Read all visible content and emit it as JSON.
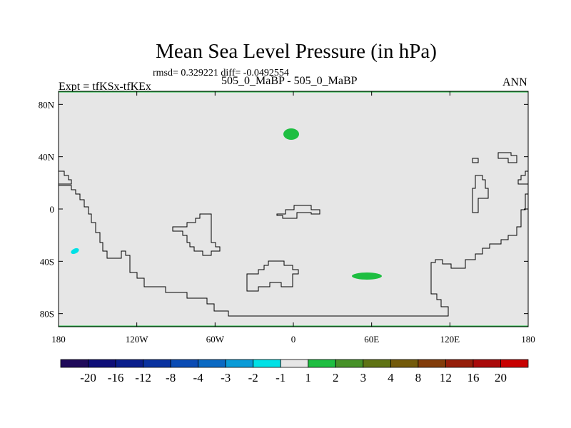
{
  "chart_data": {
    "type": "heatmap",
    "title": "Mean Sea Level Pressure (in hPa)",
    "stats": "rmsd= 0.329221 diff= -0.0492554",
    "left_label": "Expt = tfKSx-tfKEx",
    "center_label": "505_0_MaBP - 505_0_MaBP",
    "right_label": "ANN",
    "x_ticks": [
      "180",
      "120W",
      "60W",
      "0",
      "60E",
      "120E",
      "180"
    ],
    "y_ticks": [
      "80N",
      "40N",
      "0",
      "40S",
      "80S"
    ],
    "xlim": [
      -180,
      180
    ],
    "ylim": [
      -90,
      90
    ],
    "background_value_range": [
      -1,
      1
    ],
    "colorbar": {
      "labels": [
        "-20",
        "-16",
        "-12",
        "-8",
        "-4",
        "-3",
        "-2",
        "-1",
        "1",
        "2",
        "3",
        "4",
        "8",
        "12",
        "16",
        "20"
      ],
      "colors": [
        "#1f0a5a",
        "#0e0e78",
        "#0a1e8c",
        "#0a32a0",
        "#0a4bb4",
        "#0a69c3",
        "#0a9bd7",
        "#00e1e6",
        "#e6e6e6",
        "#1ebe41",
        "#469128",
        "#5f7314",
        "#735a0a",
        "#823c0a",
        "#961e0a",
        "#aa0a0a",
        "#c80000"
      ]
    },
    "anomaly_regions": [
      {
        "name": "positive-region-1",
        "lon": -2,
        "lat": 59,
        "value_range": "1 to 2"
      },
      {
        "name": "positive-region-2",
        "lon": 57,
        "lat": -50,
        "value_range": "1 to 2"
      },
      {
        "name": "negative-region-1",
        "lon": -171,
        "lat": -31,
        "value_range": "-2 to -1"
      }
    ]
  }
}
